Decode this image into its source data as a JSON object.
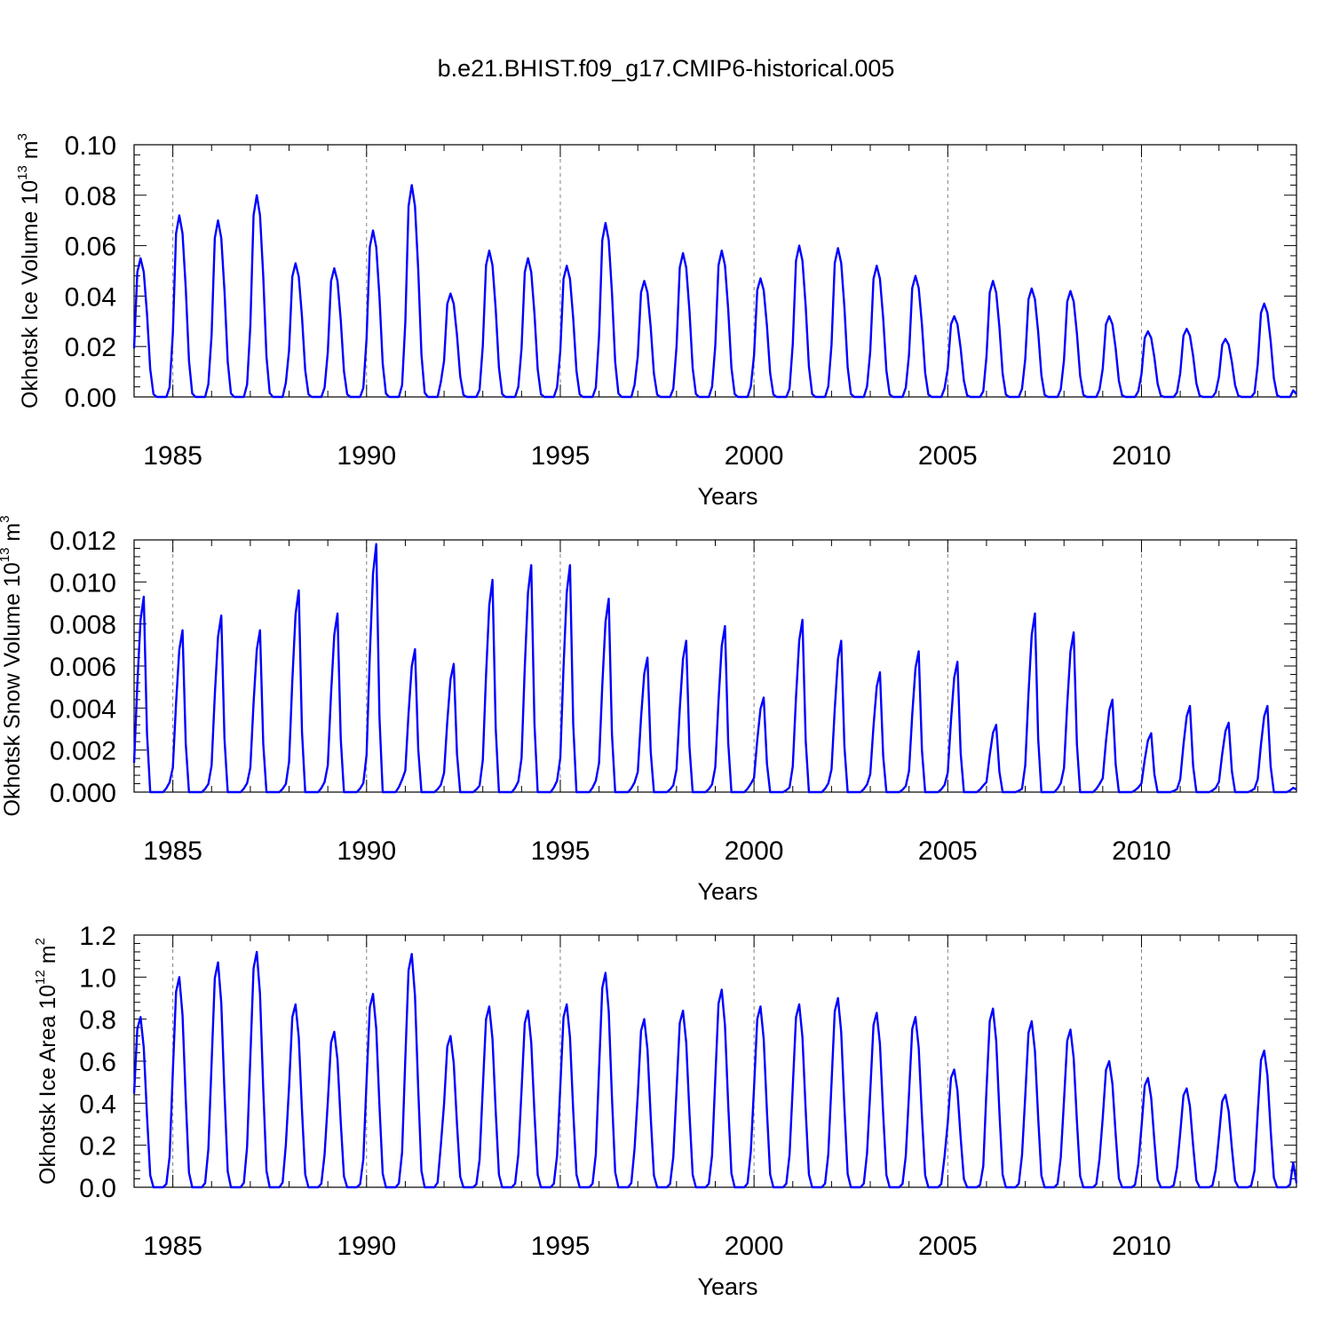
{
  "title": "b.e21.BHIST.f09_g17.CMIP6-historical.005",
  "colors": {
    "series": "#0000ff",
    "axis": "#000000",
    "refline": "#808080"
  },
  "chart_data": [
    {
      "type": "line",
      "name": "ice-volume",
      "ylabel": "Okhotsk Ice Volume 10",
      "ylabel_exp": "13",
      "ylabel_unit": " m",
      "ylabel_unit_exp": "3",
      "xlabel": "Years",
      "xlim": [
        1984.0,
        2014.0
      ],
      "ylim": [
        0.0,
        0.1
      ],
      "yticks": [
        0.0,
        0.02,
        0.04,
        0.06,
        0.08,
        0.1
      ],
      "yticklabels": [
        "0.00",
        "0.02",
        "0.04",
        "0.06",
        "0.08",
        "0.10"
      ],
      "xticks": [
        1985,
        1990,
        1995,
        2000,
        2005,
        2010
      ],
      "xticklabels": [
        "1985",
        "1990",
        "1995",
        "2000",
        "2005",
        "2010"
      ],
      "ref_lines": [
        1985,
        1990,
        1995,
        2000,
        2005,
        2010
      ],
      "start_year": 1984,
      "seasonal_shape": [
        0.35,
        0.9,
        1.0,
        0.9,
        0.6,
        0.2,
        0.02,
        0.0,
        0.0,
        0.0,
        0.0,
        0.07
      ],
      "peaks": [
        0.055,
        0.072,
        0.07,
        0.08,
        0.053,
        0.051,
        0.066,
        0.084,
        0.041,
        0.058,
        0.055,
        0.052,
        0.069,
        0.046,
        0.057,
        0.058,
        0.047,
        0.06,
        0.059,
        0.052,
        0.048,
        0.032,
        0.046,
        0.043,
        0.042,
        0.032,
        0.026,
        0.027,
        0.023,
        0.037
      ]
    },
    {
      "type": "line",
      "name": "snow-volume",
      "ylabel": "Okhotsk Snow Volume 10",
      "ylabel_exp": "13",
      "ylabel_unit": " m",
      "ylabel_unit_exp": "3",
      "xlabel": "Years",
      "xlim": [
        1984.0,
        2014.0
      ],
      "ylim": [
        0.0,
        0.012
      ],
      "yticks": [
        0.0,
        0.002,
        0.004,
        0.006,
        0.008,
        0.01,
        0.012
      ],
      "yticklabels": [
        "0.000",
        "0.002",
        "0.004",
        "0.006",
        "0.008",
        "0.010",
        "0.012"
      ],
      "xticks": [
        1985,
        1990,
        1995,
        2000,
        2005,
        2010
      ],
      "xticklabels": [
        "1985",
        "1990",
        "1995",
        "2000",
        "2005",
        "2010"
      ],
      "ref_lines": [
        1985,
        1990,
        1995,
        2000,
        2005,
        2010
      ],
      "start_year": 1984,
      "seasonal_shape": [
        0.15,
        0.55,
        0.88,
        1.0,
        0.3,
        0.0,
        0.0,
        0.0,
        0.0,
        0.0,
        0.02,
        0.05
      ],
      "peaks": [
        0.0093,
        0.0077,
        0.0084,
        0.0077,
        0.0096,
        0.0085,
        0.0118,
        0.0068,
        0.0061,
        0.0101,
        0.0108,
        0.0108,
        0.0092,
        0.0064,
        0.0072,
        0.0079,
        0.0045,
        0.0082,
        0.0072,
        0.0057,
        0.0067,
        0.0062,
        0.0032,
        0.0085,
        0.0076,
        0.0044,
        0.0028,
        0.0041,
        0.0033,
        0.0041
      ]
    },
    {
      "type": "line",
      "name": "ice-area",
      "ylabel": "Okhotsk Ice Area 10",
      "ylabel_exp": "12",
      "ylabel_unit": " m",
      "ylabel_unit_exp": "2",
      "xlabel": "Years",
      "xlim": [
        1984.0,
        2014.0
      ],
      "ylim": [
        0.0,
        1.2
      ],
      "yticks": [
        0.0,
        0.2,
        0.4,
        0.6,
        0.8,
        1.0,
        1.2
      ],
      "yticklabels": [
        "0.0",
        "0.2",
        "0.4",
        "0.6",
        "0.8",
        "1.0",
        "1.2"
      ],
      "xticks": [
        1985,
        1990,
        1995,
        2000,
        2005,
        2010
      ],
      "xticklabels": [
        "1985",
        "1990",
        "1995",
        "2000",
        "2005",
        "2010"
      ],
      "ref_lines": [
        1985,
        1990,
        1995,
        2000,
        2005,
        2010
      ],
      "start_year": 1984,
      "seasonal_shape": [
        0.55,
        0.93,
        1.0,
        0.82,
        0.42,
        0.07,
        0.0,
        0.0,
        0.0,
        0.0,
        0.02,
        0.18
      ],
      "peaks": [
        0.81,
        1.0,
        1.07,
        1.12,
        0.87,
        0.74,
        0.92,
        1.11,
        0.72,
        0.86,
        0.84,
        0.87,
        1.02,
        0.8,
        0.84,
        0.94,
        0.86,
        0.87,
        0.9,
        0.83,
        0.81,
        0.56,
        0.85,
        0.79,
        0.75,
        0.6,
        0.52,
        0.47,
        0.44,
        0.65
      ]
    }
  ]
}
